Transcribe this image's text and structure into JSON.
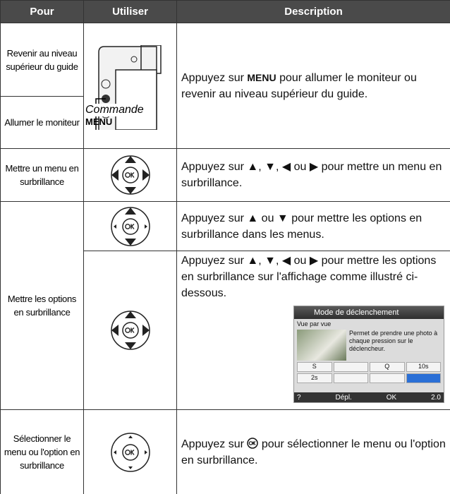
{
  "header": [
    "Pour",
    "Utiliser",
    "Description"
  ],
  "rows": [
    {
      "pour": [
        "Revenir au niveau supérieur du guide",
        "Allumer le moniteur"
      ],
      "caption": [
        "Commande",
        "MENU"
      ],
      "description": {
        "before": "Appuyez sur ",
        "key": "MENU",
        "after": " pour allumer le moniteur ou revenir au niveau supérieur du guide."
      }
    },
    {
      "pour": "Mettre un menu en surbrillance",
      "description": "Appuyez sur ▲, ▼, ◀ ou ▶ pour mettre un menu en surbrillance."
    },
    {
      "pour": "Mettre les options en surbrillance",
      "description": [
        "Appuyez sur ▲ ou ▼ pour mettre les options en surbrillance dans les menus.",
        "Appuyez sur ▲, ▼, ◀ ou ▶ pour mettre les options en surbrillance sur l'affichage comme illustré ci-dessous."
      ],
      "screen": {
        "title": "Mode de déclenchement",
        "mode": "Vue par vue",
        "text": "Permet de prendre une photo à chaque pression sur le déclencheur.",
        "buttons": [
          "S",
          "",
          "Q",
          "10s",
          "2s",
          "",
          ""
        ],
        "help": "?",
        "move": "Dépl.",
        "ok": "OK",
        "value": "2.0"
      }
    },
    {
      "pour": "Sélectionner le menu ou l'option en surbrillance",
      "description": {
        "before": "Appuyez sur ",
        "after": " pour sélectionner le menu ou l'option en surbrillance."
      }
    }
  ]
}
